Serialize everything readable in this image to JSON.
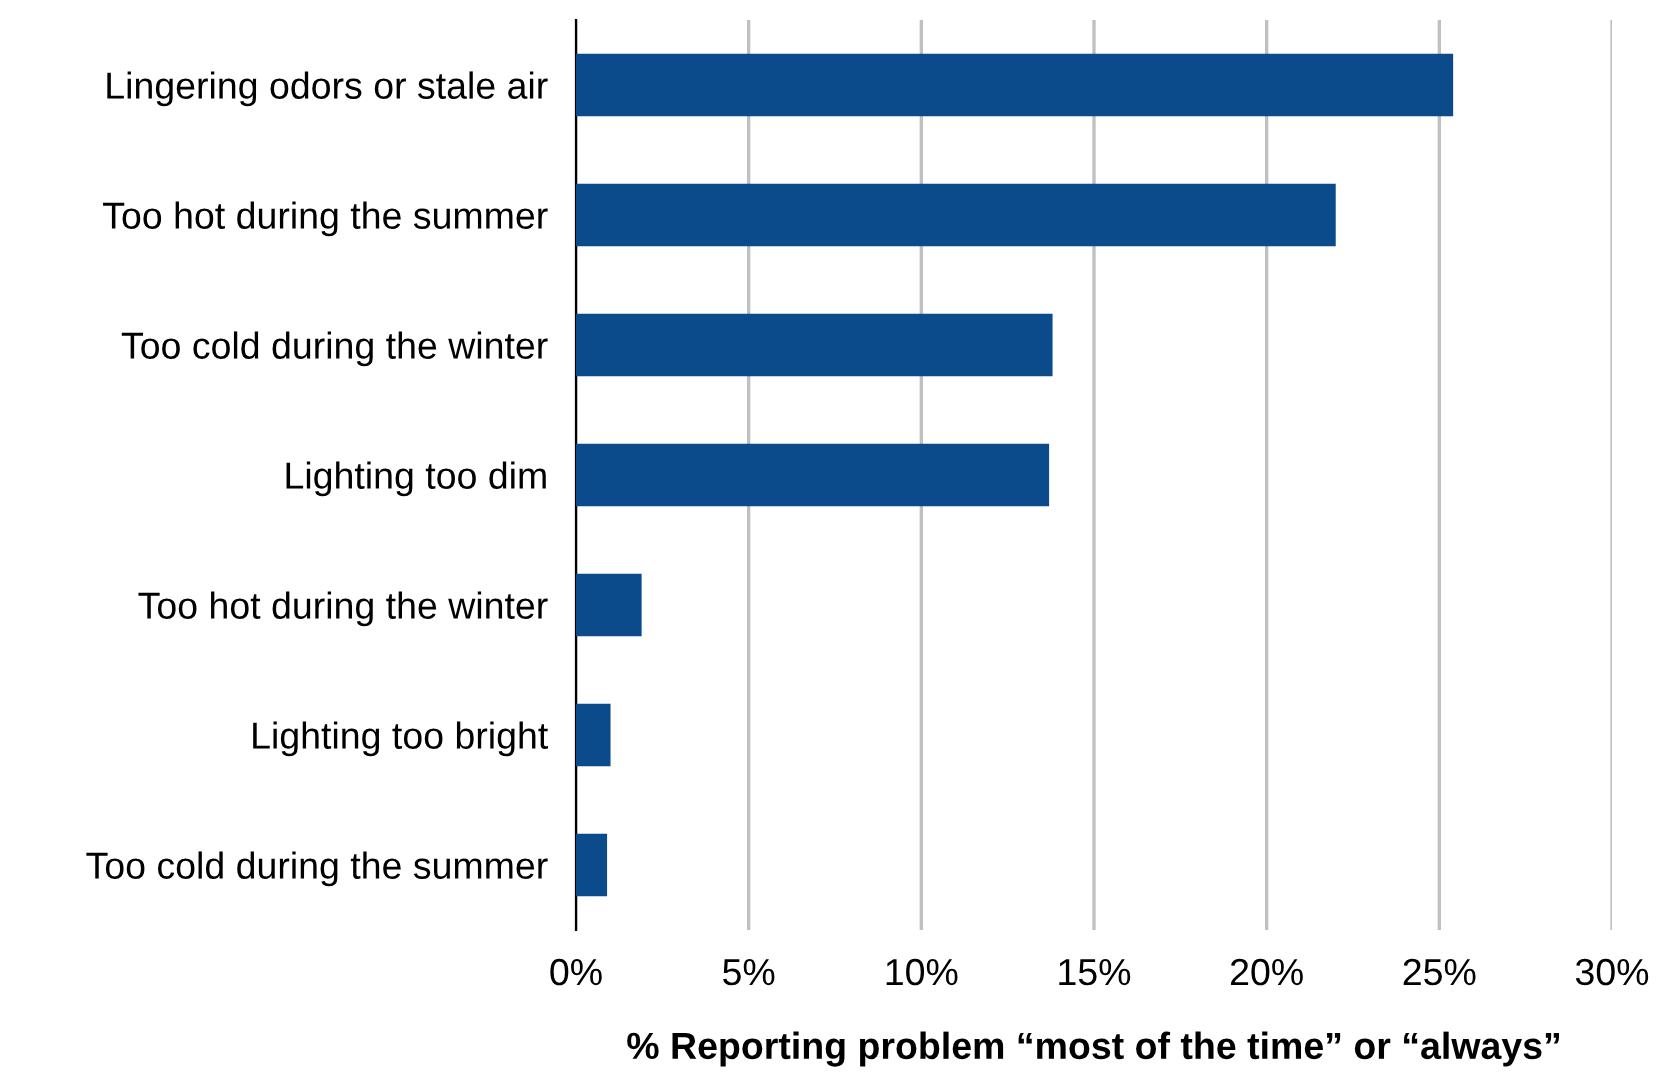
{
  "chart_data": {
    "type": "bar",
    "orientation": "horizontal",
    "xlabel": "% Reporting problem “most of the time” or “always”",
    "categories": [
      "Lingering odors or stale air",
      "Too hot during the summer",
      "Too cold during the winter",
      "Lighting too dim",
      "Too hot during the winter",
      "Lighting too bright",
      "Too cold during the summer"
    ],
    "values": [
      25.4,
      22.0,
      13.8,
      13.7,
      1.9,
      1.0,
      0.9
    ],
    "color": "#0b4a8b",
    "xlim": [
      0,
      30
    ],
    "xticks": [
      {
        "value": 0,
        "label": "0%"
      },
      {
        "value": 5,
        "label": "5%"
      },
      {
        "value": 10,
        "label": "10%"
      },
      {
        "value": 15,
        "label": "15%"
      },
      {
        "value": 20,
        "label": "20%"
      },
      {
        "value": 25,
        "label": "25%"
      },
      {
        "value": 30,
        "label": "30%"
      }
    ],
    "grid": "x",
    "legend": false
  }
}
